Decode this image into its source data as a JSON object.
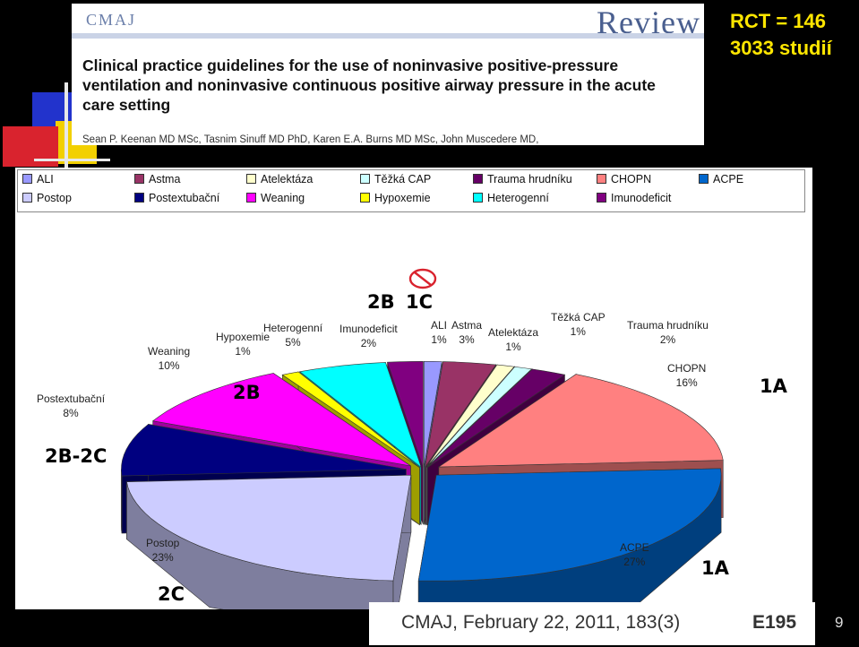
{
  "journal": {
    "logo": "CMAJ",
    "section": "Review",
    "article_title": "Clinical practice guidelines for the use of noninvasive positive-pressure ventilation and noninvasive continuous positive airway pressure in the acute care setting",
    "authors": "Sean P. Keenan MD MSc, Tasnim Sinuff MD PhD, Karen E.A. Burns MD MSc, John Muscedere MD,"
  },
  "stats": {
    "rct": "RCT = 146",
    "studies": "3033 studií"
  },
  "citation": {
    "text": "CMAJ, February 22, 2011, 183(3)",
    "page": "E195"
  },
  "slide_number": "9",
  "icons": {
    "not_recommended": "prohibition-sign-icon"
  },
  "colors": {
    "accent_yellow": "#ffe600",
    "not_recommended": "#d9232e"
  },
  "chart_data": {
    "type": "pie",
    "style": "3d-exploded",
    "legend": [
      [
        "ALI",
        "Astma",
        "Atelektáza",
        "Těžká CAP",
        "Trauma hrudníku",
        "CHOPN",
        "ACPE"
      ],
      [
        "Postop",
        "Postextubační",
        "Weaning",
        "Hypoxemie",
        "Heterogenní",
        "Imunodeficit"
      ]
    ],
    "legend_placement": "top",
    "slices": [
      {
        "name": "ALI",
        "value": 1,
        "label": "1%",
        "color": "#9999ff"
      },
      {
        "name": "Astma",
        "value": 3,
        "label": "3%",
        "color": "#993366"
      },
      {
        "name": "Atelektáza",
        "value": 1,
        "label": "1%",
        "color": "#ffffcc"
      },
      {
        "name": "Těžká CAP",
        "value": 1,
        "label": "1%",
        "color": "#ccffff"
      },
      {
        "name": "Trauma hrudníku",
        "value": 2,
        "label": "2%",
        "color": "#660066"
      },
      {
        "name": "CHOPN",
        "value": 16,
        "label": "16%",
        "color": "#ff8080"
      },
      {
        "name": "ACPE",
        "value": 27,
        "label": "27%",
        "color": "#0066cc"
      },
      {
        "name": "Postop",
        "value": 23,
        "label": "23%",
        "color": "#ccccff"
      },
      {
        "name": "Postextubační",
        "value": 8,
        "label": "8%",
        "color": "#000080"
      },
      {
        "name": "Weaning",
        "value": 10,
        "label": "10%",
        "color": "#ff00ff"
      },
      {
        "name": "Hypoxemie",
        "value": 1,
        "label": "1%",
        "color": "#ffff00"
      },
      {
        "name": "Heterogenní",
        "value": 5,
        "label": "5%",
        "color": "#00ffff"
      },
      {
        "name": "Imunodeficit",
        "value": 2,
        "label": "2%",
        "color": "#800080"
      }
    ],
    "annotations": [
      {
        "text": "2B",
        "target": "Imunodeficit"
      },
      {
        "text": "1C",
        "target": "Imunodeficit",
        "color": "#d9232e"
      },
      {
        "text": "2B",
        "target": "Weaning"
      },
      {
        "text": "2B-2C",
        "target": "Postextubační"
      },
      {
        "text": "2C",
        "target": "Postop"
      },
      {
        "text": "1A",
        "target": "CHOPN"
      },
      {
        "text": "1A",
        "target": "ACPE"
      }
    ]
  }
}
